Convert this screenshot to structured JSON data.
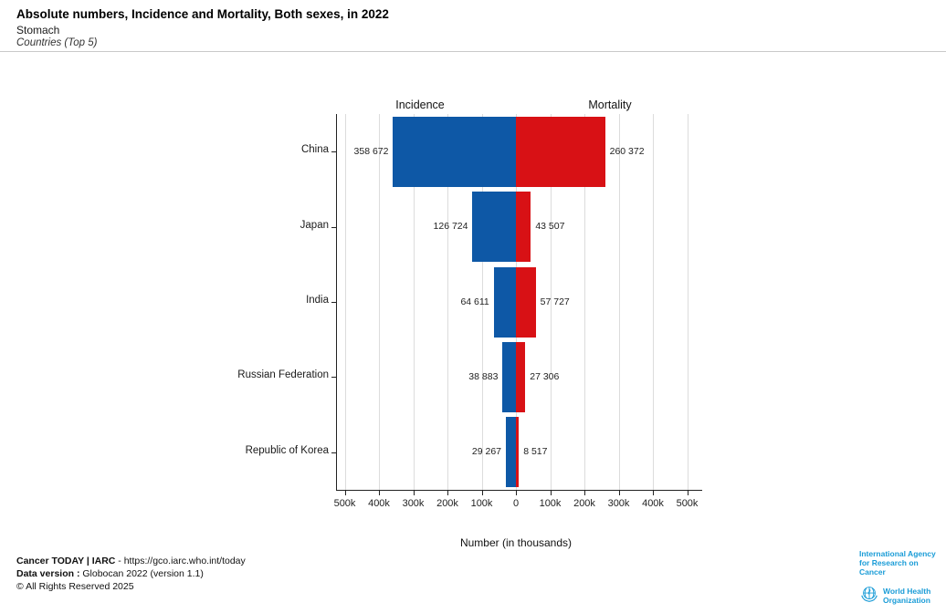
{
  "header": {
    "title": "Absolute numbers, Incidence and Mortality, Both sexes, in 2022",
    "subtitle": "Stomach",
    "scope": "Countries (Top 5)"
  },
  "chart_data": {
    "type": "bar",
    "variant": "diverging-horizontal",
    "title": "Absolute numbers, Incidence and Mortality, Both sexes, in 2022",
    "categories": [
      "China",
      "Japan",
      "India",
      "Russian Federation",
      "Republic of Korea"
    ],
    "series": [
      {
        "name": "Incidence",
        "side": "left",
        "color": "#0E58A6",
        "values": [
          358672,
          126724,
          64611,
          38883,
          29267
        ],
        "labels": [
          "358 672",
          "126 724",
          "64 611",
          "38 883",
          "29 267"
        ]
      },
      {
        "name": "Mortality",
        "side": "right",
        "color": "#D81115",
        "values": [
          260372,
          43507,
          57727,
          27306,
          8517
        ],
        "labels": [
          "260 372",
          "43 507",
          "57 727",
          "27 306",
          "8 517"
        ]
      }
    ],
    "xlabel": "Number (in thousands)",
    "x_ticks": [
      "500k",
      "400k",
      "300k",
      "200k",
      "100k",
      "0",
      "100k",
      "200k",
      "300k",
      "400k",
      "500k"
    ],
    "x_range_abs": [
      -500000,
      500000
    ],
    "grid": true,
    "legend_position": "top"
  },
  "footer": {
    "line1_bold": "Cancer TODAY | IARC",
    "line1_text": " - https://gco.iarc.who.int/today",
    "line2_bold": "Data version :",
    "line2_text": " Globocan 2022 (version 1.1)",
    "line3": "© All Rights Reserved 2025"
  },
  "logos": {
    "iarc": {
      "line1": "International Agency",
      "line2": "for Research on Cancer"
    },
    "who": {
      "line1": "World Health",
      "line2": "Organization"
    },
    "brand_color": "#1A9CD7"
  }
}
